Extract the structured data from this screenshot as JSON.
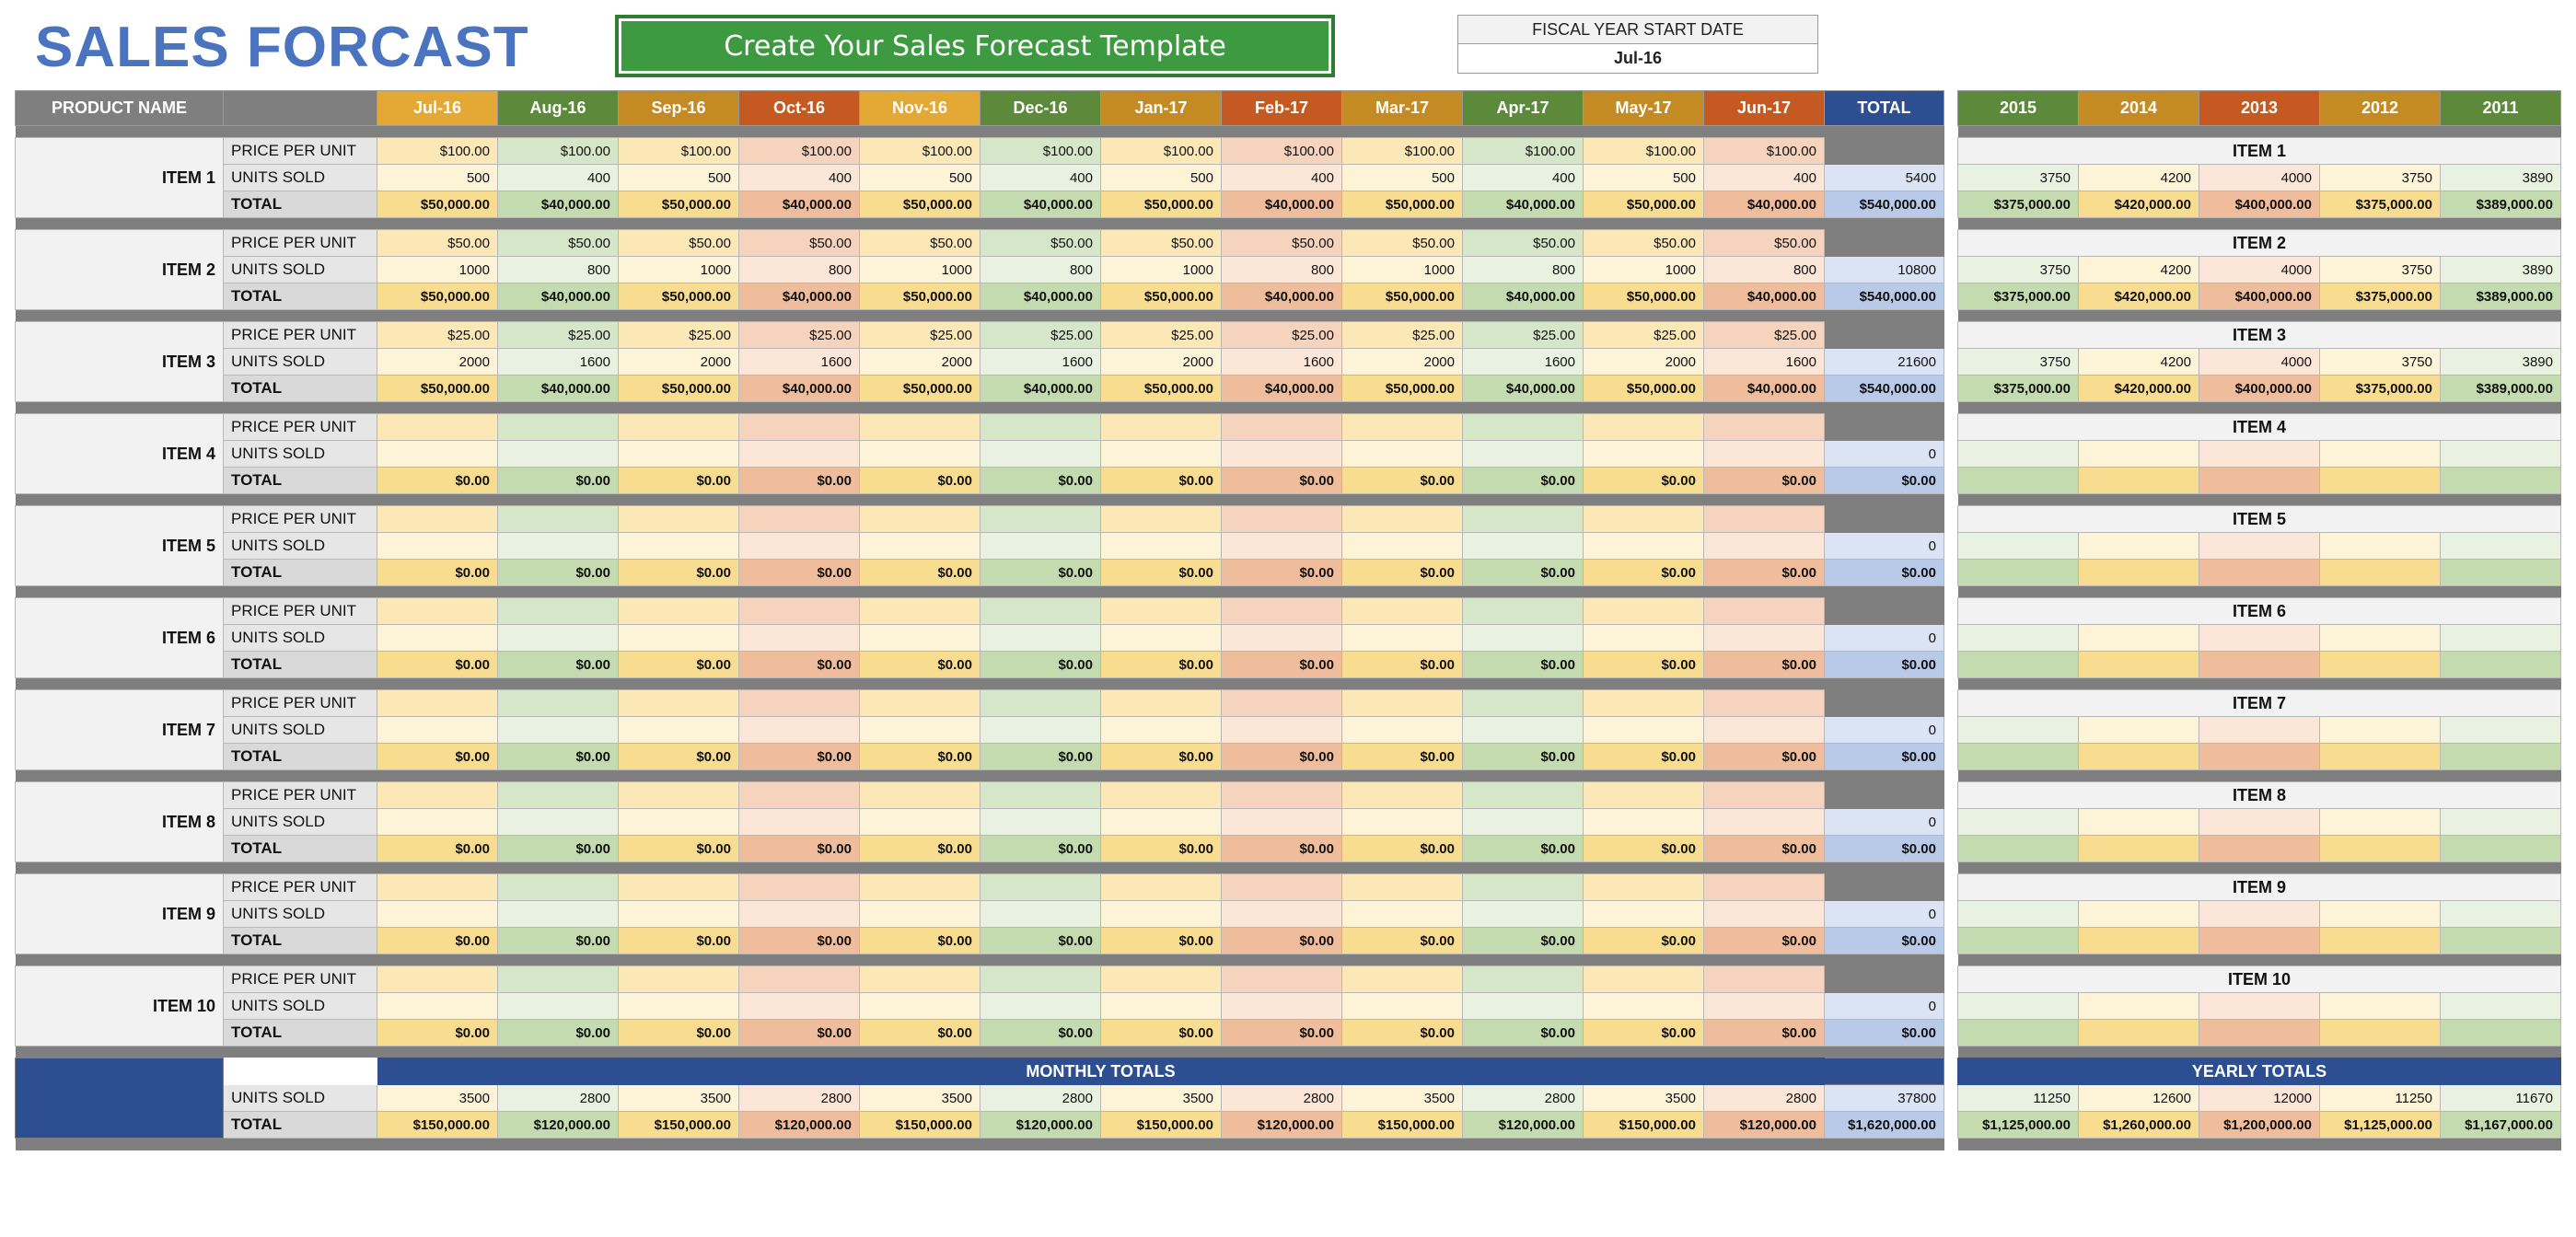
{
  "title": "SALES FORCAST",
  "cta_label": "Create Your Sales Forecast Template",
  "fiscal": {
    "label": "FISCAL YEAR START DATE",
    "value": "Jul-16"
  },
  "colors": {
    "title": "#4a73c0",
    "button": "#3e9a40",
    "monthly_banner": "#2d4f92"
  },
  "main_header": {
    "product_label": "PRODUCT NAME",
    "months": [
      "Jul-16",
      "Aug-16",
      "Sep-16",
      "Oct-16",
      "Nov-16",
      "Dec-16",
      "Jan-17",
      "Feb-17",
      "Mar-17",
      "Apr-17",
      "May-17",
      "Jun-17"
    ],
    "total_label": "TOTAL"
  },
  "row_labels": {
    "price": "PRICE PER UNIT",
    "units": "UNITS SOLD",
    "total": "TOTAL"
  },
  "years": [
    "2015",
    "2014",
    "2013",
    "2012",
    "2011"
  ],
  "items": [
    {
      "name": "ITEM 1",
      "price": [
        "$100.00",
        "$100.00",
        "$100.00",
        "$100.00",
        "$100.00",
        "$100.00",
        "$100.00",
        "$100.00",
        "$100.00",
        "$100.00",
        "$100.00",
        "$100.00"
      ],
      "units": [
        "500",
        "400",
        "500",
        "400",
        "500",
        "400",
        "500",
        "400",
        "500",
        "400",
        "500",
        "400"
      ],
      "totals": [
        "$50,000.00",
        "$40,000.00",
        "$50,000.00",
        "$40,000.00",
        "$50,000.00",
        "$40,000.00",
        "$50,000.00",
        "$40,000.00",
        "$50,000.00",
        "$40,000.00",
        "$50,000.00",
        "$40,000.00"
      ],
      "units_total": "5400",
      "grand_total": "$540,000.00",
      "yearly_units": [
        "3750",
        "4200",
        "4000",
        "3750",
        "3890"
      ],
      "yearly_totals": [
        "$375,000.00",
        "$420,000.00",
        "$400,000.00",
        "$375,000.00",
        "$389,000.00"
      ]
    },
    {
      "name": "ITEM 2",
      "price": [
        "$50.00",
        "$50.00",
        "$50.00",
        "$50.00",
        "$50.00",
        "$50.00",
        "$50.00",
        "$50.00",
        "$50.00",
        "$50.00",
        "$50.00",
        "$50.00"
      ],
      "units": [
        "1000",
        "800",
        "1000",
        "800",
        "1000",
        "800",
        "1000",
        "800",
        "1000",
        "800",
        "1000",
        "800"
      ],
      "totals": [
        "$50,000.00",
        "$40,000.00",
        "$50,000.00",
        "$40,000.00",
        "$50,000.00",
        "$40,000.00",
        "$50,000.00",
        "$40,000.00",
        "$50,000.00",
        "$40,000.00",
        "$50,000.00",
        "$40,000.00"
      ],
      "units_total": "10800",
      "grand_total": "$540,000.00",
      "yearly_units": [
        "3750",
        "4200",
        "4000",
        "3750",
        "3890"
      ],
      "yearly_totals": [
        "$375,000.00",
        "$420,000.00",
        "$400,000.00",
        "$375,000.00",
        "$389,000.00"
      ]
    },
    {
      "name": "ITEM 3",
      "price": [
        "$25.00",
        "$25.00",
        "$25.00",
        "$25.00",
        "$25.00",
        "$25.00",
        "$25.00",
        "$25.00",
        "$25.00",
        "$25.00",
        "$25.00",
        "$25.00"
      ],
      "units": [
        "2000",
        "1600",
        "2000",
        "1600",
        "2000",
        "1600",
        "2000",
        "1600",
        "2000",
        "1600",
        "2000",
        "1600"
      ],
      "totals": [
        "$50,000.00",
        "$40,000.00",
        "$50,000.00",
        "$40,000.00",
        "$50,000.00",
        "$40,000.00",
        "$50,000.00",
        "$40,000.00",
        "$50,000.00",
        "$40,000.00",
        "$50,000.00",
        "$40,000.00"
      ],
      "units_total": "21600",
      "grand_total": "$540,000.00",
      "yearly_units": [
        "3750",
        "4200",
        "4000",
        "3750",
        "3890"
      ],
      "yearly_totals": [
        "$375,000.00",
        "$420,000.00",
        "$400,000.00",
        "$375,000.00",
        "$389,000.00"
      ]
    },
    {
      "name": "ITEM 4",
      "price": [
        "",
        "",
        "",
        "",
        "",
        "",
        "",
        "",
        "",
        "",
        "",
        ""
      ],
      "units": [
        "",
        "",
        "",
        "",
        "",
        "",
        "",
        "",
        "",
        "",
        "",
        ""
      ],
      "totals": [
        "$0.00",
        "$0.00",
        "$0.00",
        "$0.00",
        "$0.00",
        "$0.00",
        "$0.00",
        "$0.00",
        "$0.00",
        "$0.00",
        "$0.00",
        "$0.00"
      ],
      "units_total": "0",
      "grand_total": "$0.00",
      "yearly_units": [
        "",
        "",
        "",
        "",
        ""
      ],
      "yearly_totals": [
        "",
        "",
        "",
        "",
        ""
      ]
    },
    {
      "name": "ITEM 5",
      "price": [
        "",
        "",
        "",
        "",
        "",
        "",
        "",
        "",
        "",
        "",
        "",
        ""
      ],
      "units": [
        "",
        "",
        "",
        "",
        "",
        "",
        "",
        "",
        "",
        "",
        "",
        ""
      ],
      "totals": [
        "$0.00",
        "$0.00",
        "$0.00",
        "$0.00",
        "$0.00",
        "$0.00",
        "$0.00",
        "$0.00",
        "$0.00",
        "$0.00",
        "$0.00",
        "$0.00"
      ],
      "units_total": "0",
      "grand_total": "$0.00",
      "yearly_units": [
        "",
        "",
        "",
        "",
        ""
      ],
      "yearly_totals": [
        "",
        "",
        "",
        "",
        ""
      ]
    },
    {
      "name": "ITEM 6",
      "price": [
        "",
        "",
        "",
        "",
        "",
        "",
        "",
        "",
        "",
        "",
        "",
        ""
      ],
      "units": [
        "",
        "",
        "",
        "",
        "",
        "",
        "",
        "",
        "",
        "",
        "",
        ""
      ],
      "totals": [
        "$0.00",
        "$0.00",
        "$0.00",
        "$0.00",
        "$0.00",
        "$0.00",
        "$0.00",
        "$0.00",
        "$0.00",
        "$0.00",
        "$0.00",
        "$0.00"
      ],
      "units_total": "0",
      "grand_total": "$0.00",
      "yearly_units": [
        "",
        "",
        "",
        "",
        ""
      ],
      "yearly_totals": [
        "",
        "",
        "",
        "",
        ""
      ]
    },
    {
      "name": "ITEM 7",
      "price": [
        "",
        "",
        "",
        "",
        "",
        "",
        "",
        "",
        "",
        "",
        "",
        ""
      ],
      "units": [
        "",
        "",
        "",
        "",
        "",
        "",
        "",
        "",
        "",
        "",
        "",
        ""
      ],
      "totals": [
        "$0.00",
        "$0.00",
        "$0.00",
        "$0.00",
        "$0.00",
        "$0.00",
        "$0.00",
        "$0.00",
        "$0.00",
        "$0.00",
        "$0.00",
        "$0.00"
      ],
      "units_total": "0",
      "grand_total": "$0.00",
      "yearly_units": [
        "",
        "",
        "",
        "",
        ""
      ],
      "yearly_totals": [
        "",
        "",
        "",
        "",
        ""
      ]
    },
    {
      "name": "ITEM 8",
      "price": [
        "",
        "",
        "",
        "",
        "",
        "",
        "",
        "",
        "",
        "",
        "",
        ""
      ],
      "units": [
        "",
        "",
        "",
        "",
        "",
        "",
        "",
        "",
        "",
        "",
        "",
        ""
      ],
      "totals": [
        "$0.00",
        "$0.00",
        "$0.00",
        "$0.00",
        "$0.00",
        "$0.00",
        "$0.00",
        "$0.00",
        "$0.00",
        "$0.00",
        "$0.00",
        "$0.00"
      ],
      "units_total": "0",
      "grand_total": "$0.00",
      "yearly_units": [
        "",
        "",
        "",
        "",
        ""
      ],
      "yearly_totals": [
        "",
        "",
        "",
        "",
        ""
      ]
    },
    {
      "name": "ITEM 9",
      "price": [
        "",
        "",
        "",
        "",
        "",
        "",
        "",
        "",
        "",
        "",
        "",
        ""
      ],
      "units": [
        "",
        "",
        "",
        "",
        "",
        "",
        "",
        "",
        "",
        "",
        "",
        ""
      ],
      "totals": [
        "$0.00",
        "$0.00",
        "$0.00",
        "$0.00",
        "$0.00",
        "$0.00",
        "$0.00",
        "$0.00",
        "$0.00",
        "$0.00",
        "$0.00",
        "$0.00"
      ],
      "units_total": "0",
      "grand_total": "$0.00",
      "yearly_units": [
        "",
        "",
        "",
        "",
        ""
      ],
      "yearly_totals": [
        "",
        "",
        "",
        "",
        ""
      ]
    },
    {
      "name": "ITEM 10",
      "price": [
        "",
        "",
        "",
        "",
        "",
        "",
        "",
        "",
        "",
        "",
        "",
        ""
      ],
      "units": [
        "",
        "",
        "",
        "",
        "",
        "",
        "",
        "",
        "",
        "",
        "",
        ""
      ],
      "totals": [
        "$0.00",
        "$0.00",
        "$0.00",
        "$0.00",
        "$0.00",
        "$0.00",
        "$0.00",
        "$0.00",
        "$0.00",
        "$0.00",
        "$0.00",
        "$0.00"
      ],
      "units_total": "0",
      "grand_total": "$0.00",
      "yearly_units": [
        "",
        "",
        "",
        "",
        ""
      ],
      "yearly_totals": [
        "",
        "",
        "",
        "",
        ""
      ]
    }
  ],
  "monthly_totals": {
    "banner": "MONTHLY TOTALS",
    "units": [
      "3500",
      "2800",
      "3500",
      "2800",
      "3500",
      "2800",
      "3500",
      "2800",
      "3500",
      "2800",
      "3500",
      "2800"
    ],
    "totals": [
      "$150,000.00",
      "$120,000.00",
      "$150,000.00",
      "$120,000.00",
      "$150,000.00",
      "$120,000.00",
      "$150,000.00",
      "$120,000.00",
      "$150,000.00",
      "$120,000.00",
      "$150,000.00",
      "$120,000.00"
    ],
    "units_total": "37800",
    "grand_total": "$1,620,000.00"
  },
  "yearly_totals": {
    "banner": "YEARLY TOTALS",
    "units": [
      "11250",
      "12600",
      "12000",
      "11250",
      "11670"
    ],
    "totals": [
      "$1,125,000.00",
      "$1,260,000.00",
      "$1,200,000.00",
      "$1,125,000.00",
      "$1,167,000.00"
    ]
  }
}
